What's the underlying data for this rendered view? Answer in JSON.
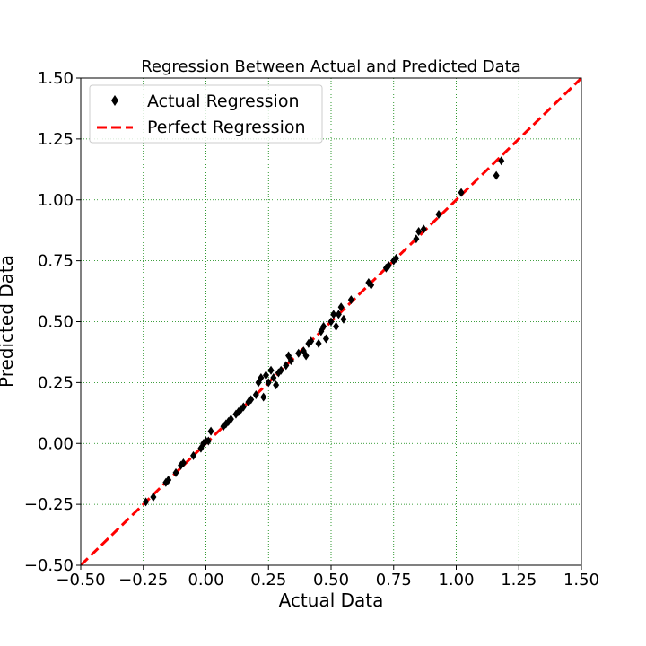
{
  "chart_data": {
    "type": "scatter",
    "title": "Regression Between Actual and Predicted Data",
    "xlabel": "Actual Data",
    "ylabel": "Predicted Data",
    "xlim": [
      -0.5,
      1.5
    ],
    "ylim": [
      -0.5,
      1.5
    ],
    "xticks": [
      -0.5,
      -0.25,
      0.0,
      0.25,
      0.5,
      0.75,
      1.0,
      1.25,
      1.5
    ],
    "yticks": [
      -0.5,
      -0.25,
      0.0,
      0.25,
      0.5,
      0.75,
      1.0,
      1.25,
      1.5
    ],
    "xtick_labels": [
      "−0.50",
      "−0.25",
      "0.00",
      "0.25",
      "0.50",
      "0.75",
      "1.00",
      "1.25",
      "1.50"
    ],
    "ytick_labels": [
      "−0.50",
      "−0.25",
      "0.00",
      "0.25",
      "0.50",
      "0.75",
      "1.00",
      "1.25",
      "1.50"
    ],
    "grid": true,
    "grid_color": "#008000",
    "legend_position": "top-left",
    "series": [
      {
        "name": "Actual Regression",
        "kind": "scatter",
        "marker": "diamond",
        "color": "#000000",
        "points": [
          [
            -0.24,
            -0.24
          ],
          [
            -0.21,
            -0.22
          ],
          [
            -0.15,
            -0.15
          ],
          [
            -0.16,
            -0.16
          ],
          [
            -0.12,
            -0.12
          ],
          [
            -0.1,
            -0.09
          ],
          [
            -0.09,
            -0.08
          ],
          [
            -0.05,
            -0.05
          ],
          [
            -0.02,
            -0.02
          ],
          [
            -0.01,
            0.0
          ],
          [
            0.0,
            0.01
          ],
          [
            0.01,
            0.01
          ],
          [
            0.02,
            0.05
          ],
          [
            0.07,
            0.07
          ],
          [
            0.08,
            0.08
          ],
          [
            0.09,
            0.09
          ],
          [
            0.1,
            0.1
          ],
          [
            0.12,
            0.12
          ],
          [
            0.13,
            0.13
          ],
          [
            0.14,
            0.14
          ],
          [
            0.15,
            0.15
          ],
          [
            0.17,
            0.17
          ],
          [
            0.18,
            0.18
          ],
          [
            0.2,
            0.2
          ],
          [
            0.21,
            0.25
          ],
          [
            0.22,
            0.27
          ],
          [
            0.23,
            0.19
          ],
          [
            0.24,
            0.28
          ],
          [
            0.25,
            0.25
          ],
          [
            0.26,
            0.3
          ],
          [
            0.27,
            0.27
          ],
          [
            0.28,
            0.24
          ],
          [
            0.29,
            0.29
          ],
          [
            0.3,
            0.3
          ],
          [
            0.32,
            0.32
          ],
          [
            0.33,
            0.36
          ],
          [
            0.34,
            0.34
          ],
          [
            0.37,
            0.37
          ],
          [
            0.39,
            0.38
          ],
          [
            0.4,
            0.36
          ],
          [
            0.41,
            0.41
          ],
          [
            0.42,
            0.42
          ],
          [
            0.45,
            0.41
          ],
          [
            0.46,
            0.46
          ],
          [
            0.47,
            0.48
          ],
          [
            0.48,
            0.43
          ],
          [
            0.5,
            0.5
          ],
          [
            0.51,
            0.53
          ],
          [
            0.52,
            0.48
          ],
          [
            0.53,
            0.53
          ],
          [
            0.54,
            0.56
          ],
          [
            0.55,
            0.51
          ],
          [
            0.58,
            0.59
          ],
          [
            0.65,
            0.66
          ],
          [
            0.66,
            0.65
          ],
          [
            0.72,
            0.72
          ],
          [
            0.73,
            0.73
          ],
          [
            0.75,
            0.75
          ],
          [
            0.76,
            0.76
          ],
          [
            0.84,
            0.84
          ],
          [
            0.85,
            0.87
          ],
          [
            0.87,
            0.88
          ],
          [
            0.93,
            0.94
          ],
          [
            1.02,
            1.03
          ],
          [
            1.16,
            1.1
          ],
          [
            1.18,
            1.16
          ]
        ]
      },
      {
        "name": "Perfect Regression",
        "kind": "line",
        "style": "dashed",
        "color": "#ff0000",
        "x": [
          -0.5,
          1.5
        ],
        "y": [
          -0.5,
          1.5
        ]
      }
    ]
  }
}
